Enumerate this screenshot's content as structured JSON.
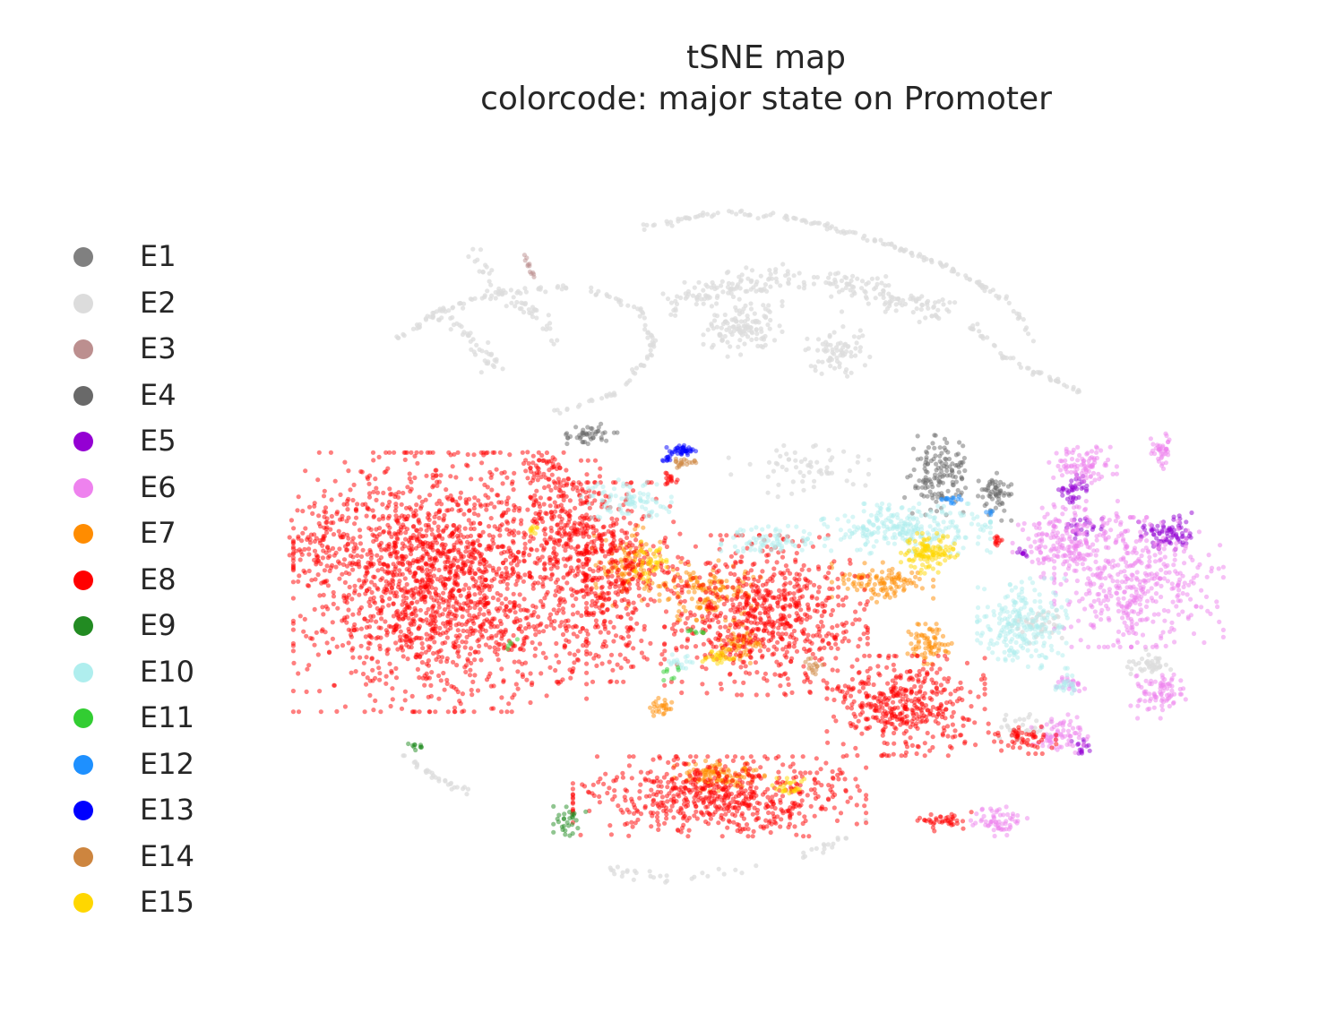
{
  "chart_data": {
    "type": "scatter",
    "title": "tSNE map",
    "subtitle": "colorcode: major state on Promoter",
    "xlabel": "",
    "ylabel": "",
    "xlim": [
      -100,
      100
    ],
    "ylim": [
      -100,
      100
    ],
    "axes_visible": false,
    "grid": false,
    "legend_position": "left",
    "states": [
      {
        "name": "E1",
        "color": "#808080"
      },
      {
        "name": "E2",
        "color": "#dcdcdc"
      },
      {
        "name": "E3",
        "color": "#bc8f8f"
      },
      {
        "name": "E4",
        "color": "#696969"
      },
      {
        "name": "E5",
        "color": "#9400d3"
      },
      {
        "name": "E6",
        "color": "#ee82ee"
      },
      {
        "name": "E7",
        "color": "#ff8c00"
      },
      {
        "name": "E8",
        "color": "#ff0000"
      },
      {
        "name": "E9",
        "color": "#228b22"
      },
      {
        "name": "E10",
        "color": "#afeeee"
      },
      {
        "name": "E11",
        "color": "#32cd32"
      },
      {
        "name": "E12",
        "color": "#1e90ff"
      },
      {
        "name": "E13",
        "color": "#0000ff"
      },
      {
        "name": "E14",
        "color": "#cd853f"
      },
      {
        "name": "E15",
        "color": "#ffd700"
      }
    ],
    "clusters": [
      {
        "state": "E2",
        "kind": "arc",
        "path": [
          [
            -26,
            86
          ],
          [
            -10,
            90
          ],
          [
            8,
            88
          ],
          [
            26,
            82
          ],
          [
            40,
            76
          ],
          [
            52,
            68
          ],
          [
            58,
            58
          ]
        ],
        "n": 150,
        "spread": 0.7
      },
      {
        "state": "E2",
        "kind": "arc",
        "path": [
          [
            -80,
            58
          ],
          [
            -70,
            66
          ],
          [
            -58,
            70
          ],
          [
            -40,
            72
          ],
          [
            -27,
            66
          ],
          [
            -24,
            56
          ],
          [
            -32,
            46
          ],
          [
            -45,
            41
          ]
        ],
        "n": 140,
        "spread": 0.8
      },
      {
        "state": "E2",
        "kind": "arc",
        "path": [
          [
            -62,
            80
          ],
          [
            -58,
            70
          ],
          [
            -50,
            66
          ],
          [
            -45,
            58
          ]
        ],
        "n": 50,
        "spread": 1.8
      },
      {
        "state": "E2",
        "kind": "arc",
        "path": [
          [
            -70,
            64
          ],
          [
            -62,
            58
          ],
          [
            -58,
            50
          ]
        ],
        "n": 40,
        "spread": 2.0
      },
      {
        "state": "E2",
        "kind": "arc",
        "path": [
          [
            -20,
            67
          ],
          [
            -8,
            72
          ],
          [
            5,
            74
          ],
          [
            20,
            72
          ],
          [
            30,
            68
          ],
          [
            38,
            66
          ]
        ],
        "n": 230,
        "spread": 3.5
      },
      {
        "state": "E2",
        "kind": "blob",
        "cx": -5,
        "cy": 62,
        "rx": 7,
        "ry": 6,
        "n": 120
      },
      {
        "state": "E2",
        "kind": "blob",
        "cx": 15,
        "cy": 56,
        "rx": 6,
        "ry": 5,
        "n": 70
      },
      {
        "state": "E2",
        "kind": "arc",
        "path": [
          [
            44,
            62
          ],
          [
            52,
            54
          ],
          [
            60,
            50
          ],
          [
            68,
            46
          ]
        ],
        "n": 50,
        "spread": 0.9
      },
      {
        "state": "E2",
        "kind": "arc",
        "path": [
          [
            -78,
            -42
          ],
          [
            -70,
            -48
          ],
          [
            -62,
            -52
          ]
        ],
        "n": 30,
        "spread": 0.8
      },
      {
        "state": "E2",
        "kind": "arc",
        "path": [
          [
            -34,
            -70
          ],
          [
            -20,
            -72
          ],
          [
            -5,
            -70
          ],
          [
            10,
            -66
          ],
          [
            22,
            -58
          ]
        ],
        "n": 45,
        "spread": 1.2
      },
      {
        "state": "E2",
        "kind": "blob",
        "cx": 8,
        "cy": 28,
        "rx": 14,
        "ry": 6,
        "n": 60
      },
      {
        "state": "E2",
        "kind": "blob",
        "cx": 60,
        "cy": -10,
        "rx": 6,
        "ry": 4,
        "n": 40
      },
      {
        "state": "E2",
        "kind": "blob",
        "cx": 55,
        "cy": -35,
        "rx": 5,
        "ry": 3,
        "n": 30
      },
      {
        "state": "E2",
        "kind": "blob",
        "cx": 82,
        "cy": -20,
        "rx": 4,
        "ry": 3,
        "n": 40
      },
      {
        "state": "E3",
        "kind": "arc",
        "path": [
          [
            -52,
            80
          ],
          [
            -50,
            74
          ]
        ],
        "n": 12,
        "spread": 0.5
      },
      {
        "state": "E4",
        "kind": "blob",
        "cx": -38,
        "cy": 36,
        "rx": 5,
        "ry": 2,
        "n": 45
      },
      {
        "state": "E4",
        "kind": "blob",
        "cx": 37,
        "cy": 26,
        "rx": 6,
        "ry": 8,
        "n": 140
      },
      {
        "state": "E4",
        "kind": "blob",
        "cx": 49,
        "cy": 21,
        "rx": 3,
        "ry": 5,
        "n": 60
      },
      {
        "state": "E5",
        "kind": "blob",
        "cx": 86,
        "cy": 12,
        "rx": 5,
        "ry": 4,
        "n": 80
      },
      {
        "state": "E5",
        "kind": "blob",
        "cx": 66,
        "cy": 23,
        "rx": 3,
        "ry": 3,
        "n": 40
      },
      {
        "state": "E5",
        "kind": "blob",
        "cx": 68,
        "cy": 13,
        "rx": 4,
        "ry": 2,
        "n": 25
      },
      {
        "state": "E5",
        "kind": "blob",
        "cx": 55,
        "cy": 7,
        "rx": 1.5,
        "ry": 1.5,
        "n": 10
      },
      {
        "state": "E5",
        "kind": "blob",
        "cx": 68,
        "cy": -40,
        "rx": 2,
        "ry": 1.5,
        "n": 15
      },
      {
        "state": "E6",
        "kind": "blob",
        "cx": 80,
        "cy": 0,
        "rx": 15,
        "ry": 13,
        "n": 420
      },
      {
        "state": "E6",
        "kind": "blob",
        "cx": 65,
        "cy": 10,
        "rx": 10,
        "ry": 8,
        "n": 200
      },
      {
        "state": "E6",
        "kind": "blob",
        "cx": 68,
        "cy": 28,
        "rx": 6,
        "ry": 4,
        "n": 90
      },
      {
        "state": "E6",
        "kind": "blob",
        "cx": 85,
        "cy": 32,
        "rx": 2,
        "ry": 4,
        "n": 40
      },
      {
        "state": "E6",
        "kind": "blob",
        "cx": 84,
        "cy": -27,
        "rx": 5,
        "ry": 5,
        "n": 80
      },
      {
        "state": "E6",
        "kind": "blob",
        "cx": 63,
        "cy": -37,
        "rx": 5,
        "ry": 4,
        "n": 70
      },
      {
        "state": "E6",
        "kind": "blob",
        "cx": 50,
        "cy": -58,
        "rx": 5,
        "ry": 3,
        "n": 60
      },
      {
        "state": "E6",
        "kind": "blob",
        "cx": 65,
        "cy": -25,
        "rx": 3,
        "ry": 2,
        "n": 25
      },
      {
        "state": "E7",
        "kind": "blob",
        "cx": -12,
        "cy": -2,
        "rx": 9,
        "ry": 6,
        "n": 140
      },
      {
        "state": "E7",
        "kind": "blob",
        "cx": 25,
        "cy": 0,
        "rx": 9,
        "ry": 4,
        "n": 110
      },
      {
        "state": "E7",
        "kind": "blob",
        "cx": -30,
        "cy": 4,
        "rx": 6,
        "ry": 8,
        "n": 110
      },
      {
        "state": "E7",
        "kind": "blob",
        "cx": -5,
        "cy": -15,
        "rx": 4,
        "ry": 4,
        "n": 60
      },
      {
        "state": "E7",
        "kind": "blob",
        "cx": 35,
        "cy": -15,
        "rx": 4,
        "ry": 4,
        "n": 70
      },
      {
        "state": "E7",
        "kind": "blob",
        "cx": -10,
        "cy": -47,
        "rx": 8,
        "ry": 3,
        "n": 110
      },
      {
        "state": "E7",
        "kind": "blob",
        "cx": -22,
        "cy": -30,
        "rx": 3,
        "ry": 2,
        "n": 25
      },
      {
        "state": "E8",
        "kind": "blob",
        "cx": -70,
        "cy": 0,
        "rx": 26,
        "ry": 26,
        "n": 1800
      },
      {
        "state": "E8",
        "kind": "blob",
        "cx": -35,
        "cy": 0,
        "rx": 14,
        "ry": 20,
        "n": 500
      },
      {
        "state": "E8",
        "kind": "blob",
        "cx": 0,
        "cy": -8,
        "rx": 18,
        "ry": 16,
        "n": 700
      },
      {
        "state": "E8",
        "kind": "blob",
        "cx": -42,
        "cy": 15,
        "rx": 10,
        "ry": 12,
        "n": 220
      },
      {
        "state": "E8",
        "kind": "blob",
        "cx": 30,
        "cy": -30,
        "rx": 14,
        "ry": 10,
        "n": 420
      },
      {
        "state": "E8",
        "kind": "blob",
        "cx": -10,
        "cy": -52,
        "rx": 26,
        "ry": 8,
        "n": 620
      },
      {
        "state": "E8",
        "kind": "blob",
        "cx": -48,
        "cy": 28,
        "rx": 4,
        "ry": 3,
        "n": 40
      },
      {
        "state": "E8",
        "kind": "blob",
        "cx": -95,
        "cy": 10,
        "rx": 6,
        "ry": 10,
        "n": 80
      },
      {
        "state": "E8",
        "kind": "blob",
        "cx": 55,
        "cy": -38,
        "rx": 6,
        "ry": 3,
        "n": 60
      },
      {
        "state": "E8",
        "kind": "blob",
        "cx": 38,
        "cy": -58,
        "rx": 5,
        "ry": 2,
        "n": 40
      },
      {
        "state": "E8",
        "kind": "blob",
        "cx": 50,
        "cy": 10,
        "rx": 1.5,
        "ry": 2,
        "n": 12
      },
      {
        "state": "E8",
        "kind": "blob",
        "cx": -20,
        "cy": 25,
        "rx": 2,
        "ry": 1.5,
        "n": 15
      },
      {
        "state": "E9",
        "kind": "blob",
        "cx": -42,
        "cy": -58,
        "rx": 3,
        "ry": 3,
        "n": 30
      },
      {
        "state": "E9",
        "kind": "blob",
        "cx": -75,
        "cy": -40,
        "rx": 2,
        "ry": 1,
        "n": 10
      },
      {
        "state": "E10",
        "kind": "blob",
        "cx": 30,
        "cy": 13,
        "rx": 15,
        "ry": 5,
        "n": 260
      },
      {
        "state": "E10",
        "kind": "blob",
        "cx": 55,
        "cy": -10,
        "rx": 8,
        "ry": 9,
        "n": 230
      },
      {
        "state": "E10",
        "kind": "blob",
        "cx": -30,
        "cy": 20,
        "rx": 8,
        "ry": 4,
        "n": 90
      },
      {
        "state": "E10",
        "kind": "blob",
        "cx": 0,
        "cy": 10,
        "rx": 8,
        "ry": 3,
        "n": 80
      },
      {
        "state": "E10",
        "kind": "blob",
        "cx": 65,
        "cy": -25,
        "rx": 3,
        "ry": 2,
        "n": 25
      },
      {
        "state": "E10",
        "kind": "blob",
        "cx": -18,
        "cy": -20,
        "rx": 3,
        "ry": 2,
        "n": 20
      },
      {
        "state": "E11",
        "kind": "blob",
        "cx": -15,
        "cy": -12,
        "rx": 2,
        "ry": 0.5,
        "n": 8
      },
      {
        "state": "E11",
        "kind": "blob",
        "cx": -22,
        "cy": -22,
        "rx": 3,
        "ry": 1.5,
        "n": 8
      },
      {
        "state": "E11",
        "kind": "blob",
        "cx": -55,
        "cy": -15,
        "rx": 2,
        "ry": 1,
        "n": 5
      },
      {
        "state": "E12",
        "kind": "blob",
        "cx": 40,
        "cy": 20,
        "rx": 2,
        "ry": 1,
        "n": 15
      },
      {
        "state": "E12",
        "kind": "blob",
        "cx": 48,
        "cy": 17,
        "rx": 1,
        "ry": 0.5,
        "n": 5
      },
      {
        "state": "E13",
        "kind": "blob",
        "cx": -18,
        "cy": 32,
        "rx": 3,
        "ry": 1,
        "n": 40
      },
      {
        "state": "E13",
        "kind": "blob",
        "cx": -21,
        "cy": 30,
        "rx": 1,
        "ry": 1,
        "n": 10
      },
      {
        "state": "E14",
        "kind": "blob",
        "cx": -18,
        "cy": 29,
        "rx": 3,
        "ry": 1,
        "n": 20
      },
      {
        "state": "E14",
        "kind": "blob",
        "cx": 10,
        "cy": -20,
        "rx": 2,
        "ry": 2,
        "n": 15
      },
      {
        "state": "E15",
        "kind": "blob",
        "cx": 35,
        "cy": 7,
        "rx": 5,
        "ry": 4,
        "n": 120
      },
      {
        "state": "E15",
        "kind": "blob",
        "cx": -25,
        "cy": 5,
        "rx": 3,
        "ry": 4,
        "n": 40
      },
      {
        "state": "E15",
        "kind": "blob",
        "cx": -10,
        "cy": -18,
        "rx": 3,
        "ry": 2,
        "n": 30
      },
      {
        "state": "E15",
        "kind": "blob",
        "cx": 5,
        "cy": -50,
        "rx": 3,
        "ry": 2,
        "n": 25
      },
      {
        "state": "E15",
        "kind": "blob",
        "cx": -50,
        "cy": 13,
        "rx": 1.5,
        "ry": 1,
        "n": 10
      }
    ]
  }
}
